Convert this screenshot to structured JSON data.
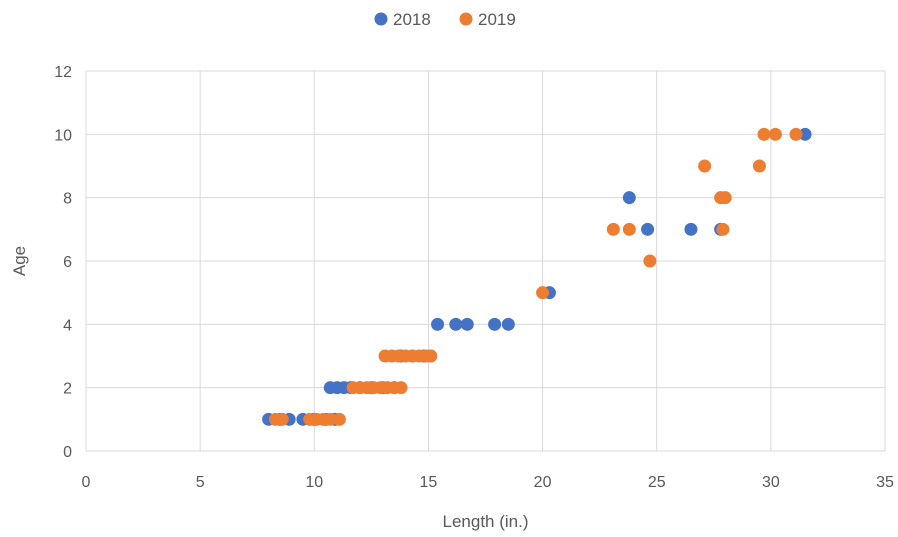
{
  "chart_data": {
    "type": "scatter",
    "title": "",
    "xlabel": "Length (in.)",
    "ylabel": "Age",
    "xlim": [
      0,
      35
    ],
    "ylim": [
      0,
      12
    ],
    "x_ticks": [
      0,
      5,
      10,
      15,
      20,
      25,
      30,
      35
    ],
    "y_ticks": [
      0,
      2,
      4,
      6,
      8,
      10,
      12
    ],
    "grid": true,
    "legend_position": "top",
    "series": [
      {
        "name": "2018",
        "color": "#4472c4",
        "points": [
          [
            8.0,
            1
          ],
          [
            8.5,
            1
          ],
          [
            8.9,
            1
          ],
          [
            9.5,
            1
          ],
          [
            10.0,
            1
          ],
          [
            10.5,
            1
          ],
          [
            10.9,
            1
          ],
          [
            10.7,
            2
          ],
          [
            11.0,
            2
          ],
          [
            11.3,
            2
          ],
          [
            11.6,
            2
          ],
          [
            12.0,
            2
          ],
          [
            12.5,
            2
          ],
          [
            13.0,
            2
          ],
          [
            13.5,
            2
          ],
          [
            13.8,
            3
          ],
          [
            14.3,
            3
          ],
          [
            14.8,
            3
          ],
          [
            15.1,
            3
          ],
          [
            15.4,
            4
          ],
          [
            16.2,
            4
          ],
          [
            16.7,
            4
          ],
          [
            17.9,
            4
          ],
          [
            18.5,
            4
          ],
          [
            20.3,
            5
          ],
          [
            23.8,
            8
          ],
          [
            24.6,
            7
          ],
          [
            26.5,
            7
          ],
          [
            27.8,
            7
          ],
          [
            31.5,
            10
          ]
        ]
      },
      {
        "name": "2019",
        "color": "#ed7d31",
        "points": [
          [
            8.3,
            1
          ],
          [
            8.6,
            1
          ],
          [
            9.8,
            1
          ],
          [
            10.1,
            1
          ],
          [
            10.4,
            1
          ],
          [
            10.7,
            1
          ],
          [
            11.1,
            1
          ],
          [
            11.7,
            2
          ],
          [
            12.0,
            2
          ],
          [
            12.3,
            2
          ],
          [
            12.6,
            2
          ],
          [
            12.9,
            2
          ],
          [
            13.2,
            2
          ],
          [
            13.5,
            2
          ],
          [
            13.8,
            2
          ],
          [
            13.1,
            3
          ],
          [
            13.4,
            3
          ],
          [
            13.7,
            3
          ],
          [
            14.0,
            3
          ],
          [
            14.3,
            3
          ],
          [
            14.6,
            3
          ],
          [
            14.9,
            3
          ],
          [
            15.1,
            3
          ],
          [
            20.0,
            5
          ],
          [
            23.1,
            7
          ],
          [
            23.8,
            7
          ],
          [
            24.7,
            6
          ],
          [
            27.1,
            9
          ],
          [
            27.8,
            8
          ],
          [
            28.0,
            8
          ],
          [
            27.9,
            7
          ],
          [
            29.5,
            9
          ],
          [
            29.7,
            10
          ],
          [
            30.2,
            10
          ],
          [
            31.1,
            10
          ]
        ]
      }
    ]
  }
}
